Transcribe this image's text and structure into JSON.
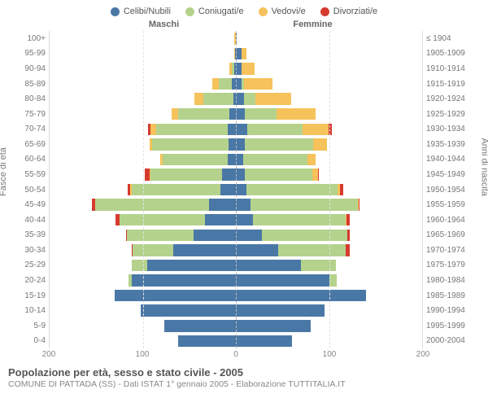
{
  "legend": [
    {
      "label": "Celibi/Nubili",
      "color": "#4a78a6"
    },
    {
      "label": "Coniugati/e",
      "color": "#b4d28c"
    },
    {
      "label": "Vedovi/e",
      "color": "#f6c25b"
    },
    {
      "label": "Divorziati/e",
      "color": "#d63a2f"
    }
  ],
  "header_left": "Maschi",
  "header_right": "Femmine",
  "y_title_left": "Fasce di età",
  "y_title_right": "Anni di nascita",
  "title": "Popolazione per età, sesso e stato civile - 2005",
  "subtitle": "COMUNE DI PATTADA (SS) - Dati ISTAT 1° gennaio 2005 - Elaborazione TUTTITALIA.IT",
  "x_max": 200,
  "x_ticks": [
    200,
    100,
    0,
    100,
    200
  ],
  "age_labels": [
    "100+",
    "95-99",
    "90-94",
    "85-89",
    "80-84",
    "75-79",
    "70-74",
    "65-69",
    "60-64",
    "55-59",
    "50-54",
    "45-49",
    "40-44",
    "35-39",
    "30-34",
    "25-29",
    "20-24",
    "15-19",
    "10-14",
    "5-9",
    "0-4"
  ],
  "year_labels": [
    "≤ 1904",
    "1905-1909",
    "1910-1914",
    "1915-1919",
    "1920-1924",
    "1925-1929",
    "1930-1934",
    "1935-1939",
    "1940-1944",
    "1945-1949",
    "1950-1954",
    "1955-1959",
    "1960-1964",
    "1965-1969",
    "1970-1974",
    "1975-1979",
    "1980-1984",
    "1985-1989",
    "1990-1994",
    "1995-1999",
    "2000-2004"
  ],
  "colors": {
    "celibi": "#4a78a6",
    "coniugati": "#b4d28c",
    "vedovi": "#f6c25b",
    "divorziati": "#d63a2f"
  },
  "grid_color": "#e3e3e3",
  "center_color": "#bbbbbb",
  "background": "#ffffff",
  "maschi": [
    {
      "celibi": 0,
      "coniugati": 0,
      "vedovi": 2,
      "divorziati": 0
    },
    {
      "celibi": 1,
      "coniugati": 0,
      "vedovi": 1,
      "divorziati": 0
    },
    {
      "celibi": 2,
      "coniugati": 2,
      "vedovi": 3,
      "divorziati": 0
    },
    {
      "celibi": 4,
      "coniugati": 14,
      "vedovi": 7,
      "divorziati": 0
    },
    {
      "celibi": 3,
      "coniugati": 32,
      "vedovi": 10,
      "divorziati": 0
    },
    {
      "celibi": 7,
      "coniugati": 55,
      "vedovi": 7,
      "divorziati": 0
    },
    {
      "celibi": 9,
      "coniugati": 77,
      "vedovi": 6,
      "divorziati": 2
    },
    {
      "celibi": 8,
      "coniugati": 82,
      "vedovi": 3,
      "divorziati": 0
    },
    {
      "celibi": 9,
      "coniugati": 70,
      "vedovi": 2,
      "divorziati": 0
    },
    {
      "celibi": 15,
      "coniugati": 77,
      "vedovi": 1,
      "divorziati": 5
    },
    {
      "celibi": 17,
      "coniugati": 95,
      "vedovi": 2,
      "divorziati": 2
    },
    {
      "celibi": 29,
      "coniugati": 122,
      "vedovi": 0,
      "divorziati": 4
    },
    {
      "celibi": 33,
      "coniugati": 92,
      "vedovi": 0,
      "divorziati": 4
    },
    {
      "celibi": 45,
      "coniugati": 72,
      "vedovi": 0,
      "divorziati": 1
    },
    {
      "celibi": 67,
      "coniugati": 44,
      "vedovi": 0,
      "divorziati": 1
    },
    {
      "celibi": 95,
      "coniugati": 17,
      "vedovi": 0,
      "divorziati": 0
    },
    {
      "celibi": 112,
      "coniugati": 3,
      "vedovi": 0,
      "divorziati": 0
    },
    {
      "celibi": 130,
      "coniugati": 0,
      "vedovi": 0,
      "divorziati": 0
    },
    {
      "celibi": 102,
      "coniugati": 0,
      "vedovi": 0,
      "divorziati": 0
    },
    {
      "celibi": 77,
      "coniugati": 0,
      "vedovi": 0,
      "divorziati": 0
    },
    {
      "celibi": 62,
      "coniugati": 0,
      "vedovi": 0,
      "divorziati": 0
    }
  ],
  "femmine": [
    {
      "celibi": 1,
      "coniugati": 0,
      "vedovi": 0,
      "divorziati": 0
    },
    {
      "celibi": 6,
      "coniugati": 0,
      "vedovi": 5,
      "divorziati": 0
    },
    {
      "celibi": 6,
      "coniugati": 0,
      "vedovi": 14,
      "divorziati": 0
    },
    {
      "celibi": 6,
      "coniugati": 3,
      "vedovi": 30,
      "divorziati": 0
    },
    {
      "celibi": 9,
      "coniugati": 12,
      "vedovi": 38,
      "divorziati": 0
    },
    {
      "celibi": 10,
      "coniugati": 34,
      "vedovi": 42,
      "divorziati": 0
    },
    {
      "celibi": 12,
      "coniugati": 60,
      "vedovi": 28,
      "divorziati": 3
    },
    {
      "celibi": 10,
      "coniugati": 73,
      "vedovi": 15,
      "divorziati": 0
    },
    {
      "celibi": 8,
      "coniugati": 69,
      "vedovi": 9,
      "divorziati": 0
    },
    {
      "celibi": 10,
      "coniugati": 72,
      "vedovi": 6,
      "divorziati": 1
    },
    {
      "celibi": 11,
      "coniugati": 98,
      "vedovi": 3,
      "divorziati": 3
    },
    {
      "celibi": 16,
      "coniugati": 115,
      "vedovi": 1,
      "divorziati": 1
    },
    {
      "celibi": 18,
      "coniugati": 100,
      "vedovi": 1,
      "divorziati": 3
    },
    {
      "celibi": 28,
      "coniugati": 92,
      "vedovi": 0,
      "divorziati": 2
    },
    {
      "celibi": 45,
      "coniugati": 73,
      "vedovi": 0,
      "divorziati": 4
    },
    {
      "celibi": 70,
      "coniugati": 37,
      "vedovi": 0,
      "divorziati": 0
    },
    {
      "celibi": 100,
      "coniugati": 8,
      "vedovi": 0,
      "divorziati": 0
    },
    {
      "celibi": 140,
      "coniugati": 0,
      "vedovi": 0,
      "divorziati": 0
    },
    {
      "celibi": 95,
      "coniugati": 0,
      "vedovi": 0,
      "divorziati": 0
    },
    {
      "celibi": 80,
      "coniugati": 0,
      "vedovi": 0,
      "divorziati": 0
    },
    {
      "celibi": 60,
      "coniugati": 0,
      "vedovi": 0,
      "divorziati": 0
    }
  ]
}
